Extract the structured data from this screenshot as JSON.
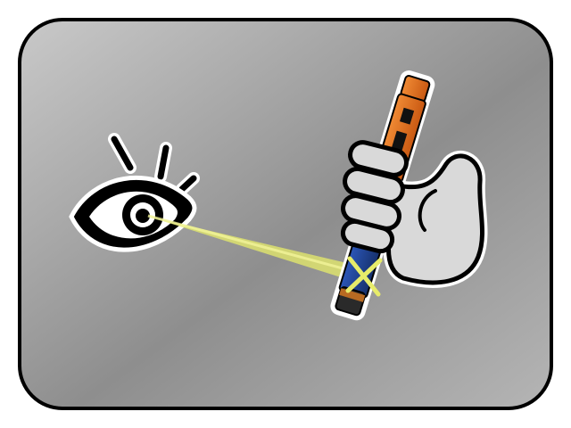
{
  "scene": {
    "background_colors": [
      "#c6c6c6",
      "#8f8f8f",
      "#b3b3b3"
    ],
    "border_color": "#000000",
    "icons": [
      "eye-icon",
      "hand-icon",
      "pen-injector-icon",
      "cross-mark-icon"
    ],
    "accent_colors": {
      "pen_orange": "#e2701f",
      "pen_blue": "#1f3d86",
      "sight_line": "#e7ec6a",
      "hand_fill": "#d9d9d9"
    }
  }
}
